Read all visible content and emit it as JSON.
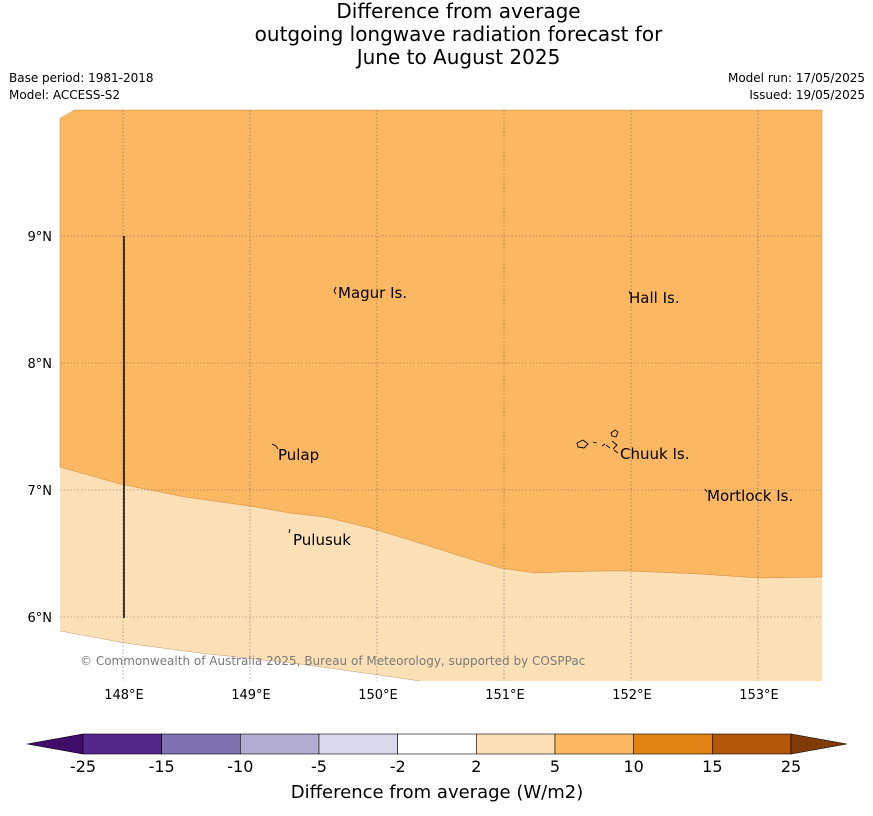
{
  "title": {
    "line1": "Difference from average",
    "line2": "outgoing longwave radiation forecast for",
    "line3": "June to August 2025"
  },
  "meta": {
    "base_period": "Base period: 1981-2018",
    "model": "Model: ACCESS-S2",
    "model_run": "Model run: 17/05/2025",
    "issued": "Issued: 19/05/2025"
  },
  "map": {
    "lat_labels": [
      "9°N",
      "8°N",
      "7°N",
      "6°N"
    ],
    "lon_labels": [
      "148°E",
      "149°E",
      "150°E",
      "151°E",
      "152°E",
      "153°E"
    ],
    "places": [
      "Magur Is.",
      "Hall Is.",
      "Pulap",
      "Chuuk Is.",
      "Mortlock Is.",
      "Pulusuk"
    ],
    "copyright": "© Commonwealth of Australia 2025, Bureau of Meteorology, supported by COSPPac",
    "fill_colors": {
      "category_5_10": "#fbb762",
      "category_2_5": "#fde0b5"
    }
  },
  "colorbar": {
    "title": "Difference from average (W/m2)",
    "ticks": [
      "-25",
      "-15",
      "-10",
      "-5",
      "-2",
      "2",
      "5",
      "10",
      "15",
      "25"
    ],
    "colors": [
      "#3f0c6a",
      "#55288c",
      "#8072b0",
      "#b2acd3",
      "#d8d9eb",
      "#ffffff",
      "#fde0b5",
      "#fbb762",
      "#e08214",
      "#b35806",
      "#7f3b08"
    ]
  }
}
